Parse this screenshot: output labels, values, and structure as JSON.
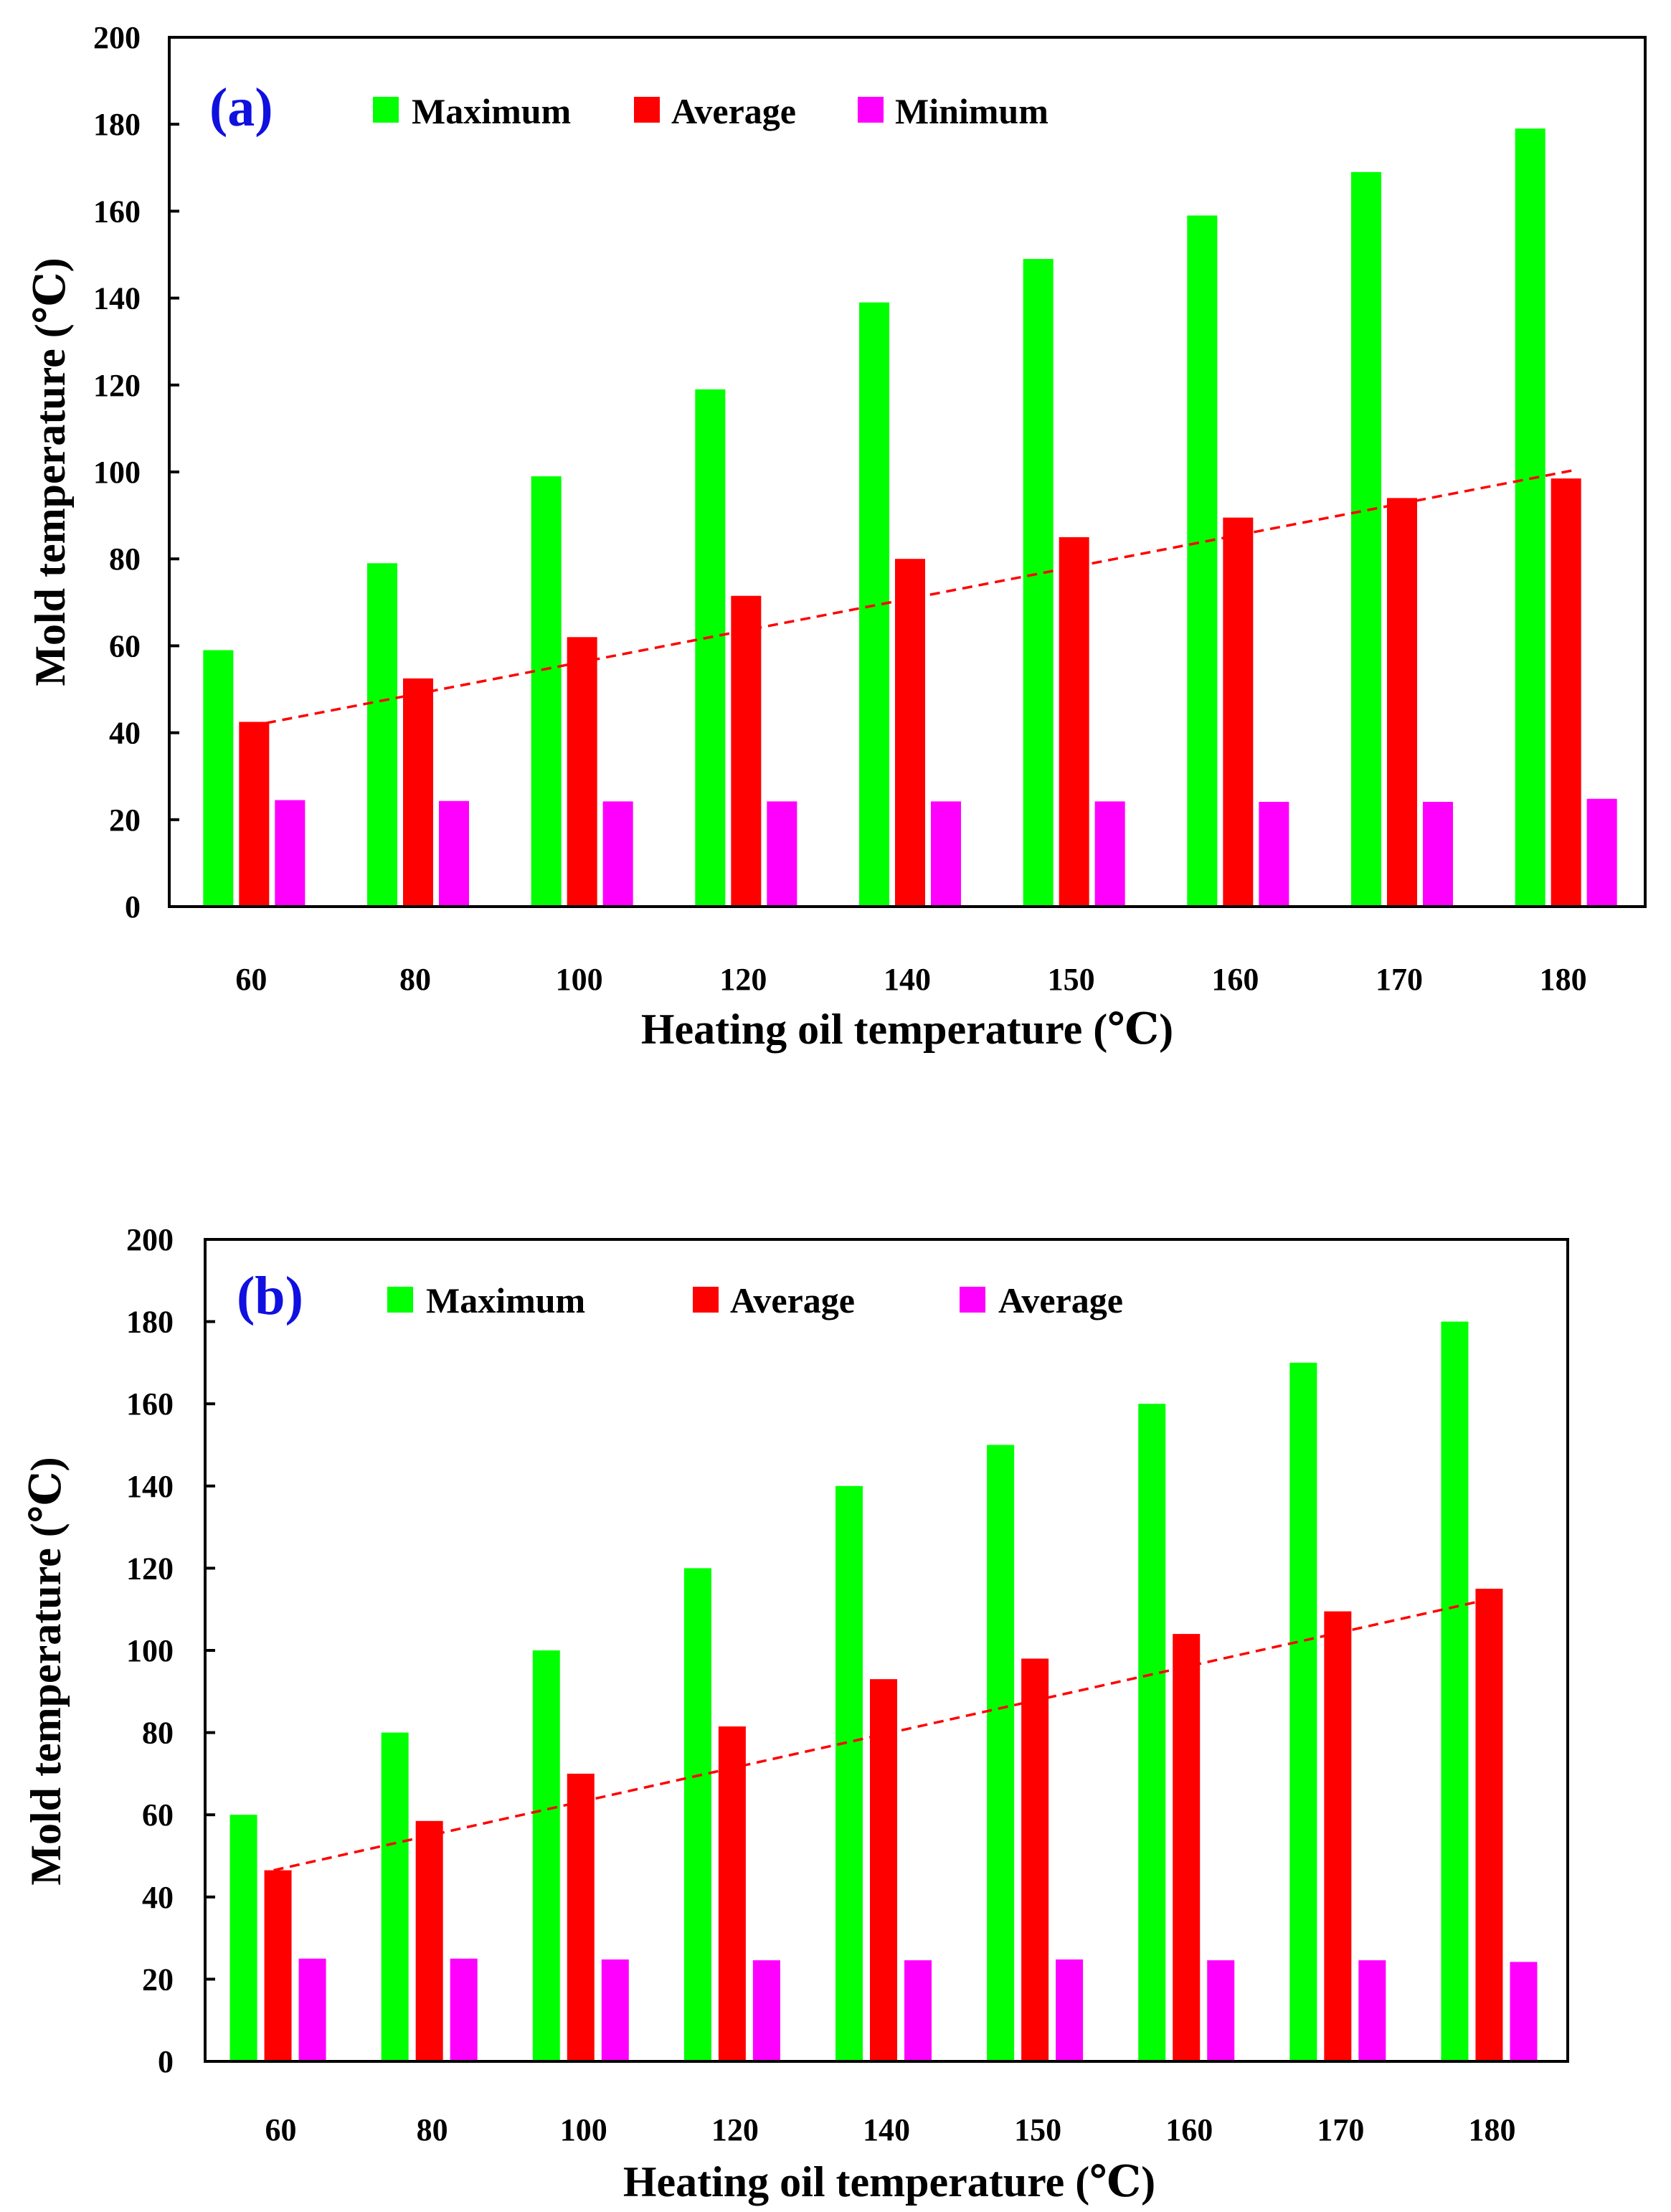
{
  "colors": {
    "maximum": "#00ff00",
    "average": "#ff0000",
    "minimum": "#ff00ff",
    "trend": "#ff0000",
    "panel_label": "#1010e0",
    "axis": "#000000",
    "background": "#ffffff"
  },
  "chart_data": [
    {
      "id": "a",
      "type": "bar",
      "panel_label": "(a)",
      "title": "",
      "xlabel": "Heating oil temperature (℃)",
      "ylabel": "Mold temperature (℃)",
      "ylim": [
        0,
        200
      ],
      "yticks": [
        "0",
        "20",
        "40",
        "60",
        "80",
        "100",
        "120",
        "140",
        "160",
        "180",
        "200"
      ],
      "categories": [
        "60",
        "80",
        "100",
        "120",
        "140",
        "150",
        "160",
        "170",
        "180"
      ],
      "legend_position": "top",
      "series": [
        {
          "name": "Maximum",
          "color_key": "maximum",
          "values": [
            59,
            79,
            99,
            119,
            139,
            149,
            159,
            169,
            179
          ]
        },
        {
          "name": "Average",
          "color_key": "average",
          "values": [
            42.5,
            52.5,
            62,
            71.5,
            80,
            85,
            89.5,
            94,
            98.5
          ]
        },
        {
          "name": "Minimum",
          "color_key": "minimum",
          "values": [
            24.5,
            24.3,
            24.2,
            24.2,
            24.2,
            24.2,
            24.1,
            24.1,
            24.8
          ]
        }
      ],
      "trendline": {
        "series": "Average",
        "style": "dashed",
        "start": 41.5,
        "end": 100.5
      }
    },
    {
      "id": "b",
      "type": "bar",
      "panel_label": "(b)",
      "title": "",
      "xlabel": "Heating oil temperature (℃)",
      "ylabel": "Mold temperature (℃)",
      "ylim": [
        0,
        200
      ],
      "yticks": [
        "0",
        "20",
        "40",
        "60",
        "80",
        "100",
        "120",
        "140",
        "160",
        "180",
        "200"
      ],
      "categories": [
        "60",
        "80",
        "100",
        "120",
        "140",
        "150",
        "160",
        "170",
        "180"
      ],
      "legend_position": "top",
      "series": [
        {
          "name": "Maximum",
          "color_key": "maximum",
          "values": [
            60,
            80,
            100,
            120,
            140,
            150,
            160,
            170,
            180
          ]
        },
        {
          "name": "Average",
          "color_key": "average",
          "values": [
            46.5,
            58.5,
            70,
            81.5,
            93,
            98,
            104,
            109.5,
            115
          ]
        },
        {
          "name": "Average",
          "color_key": "minimum",
          "values": [
            25,
            25,
            24.8,
            24.6,
            24.6,
            24.8,
            24.6,
            24.6,
            24.2
          ]
        }
      ],
      "trendline": {
        "series": "Average",
        "style": "dashed",
        "start": 46.5,
        "end": 113
      }
    }
  ]
}
